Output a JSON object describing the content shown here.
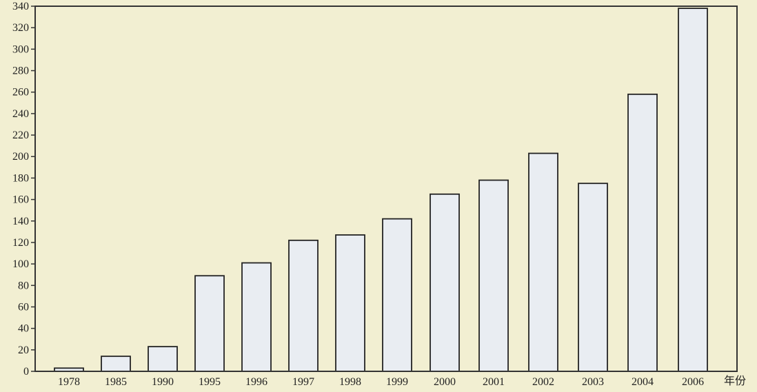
{
  "chart_data": {
    "type": "bar",
    "categories": [
      "1978",
      "1985",
      "1990",
      "1995",
      "1996",
      "1997",
      "1998",
      "1999",
      "2000",
      "2001",
      "2002",
      "2003",
      "2004",
      "2006"
    ],
    "values": [
      3,
      14,
      23,
      89,
      101,
      122,
      127,
      142,
      165,
      178,
      203,
      175,
      258,
      338
    ],
    "xlabel": "年份",
    "ylabel": "",
    "ylim": [
      0,
      340
    ],
    "yticks": [
      0,
      20,
      40,
      60,
      80,
      100,
      120,
      140,
      160,
      180,
      200,
      220,
      240,
      260,
      280,
      300,
      320,
      340
    ],
    "grid": false,
    "colors": {
      "bar_fill": "#e9edf2",
      "bar_stroke": "#222222",
      "axis": "#333333",
      "background": "#f2efd2"
    }
  }
}
